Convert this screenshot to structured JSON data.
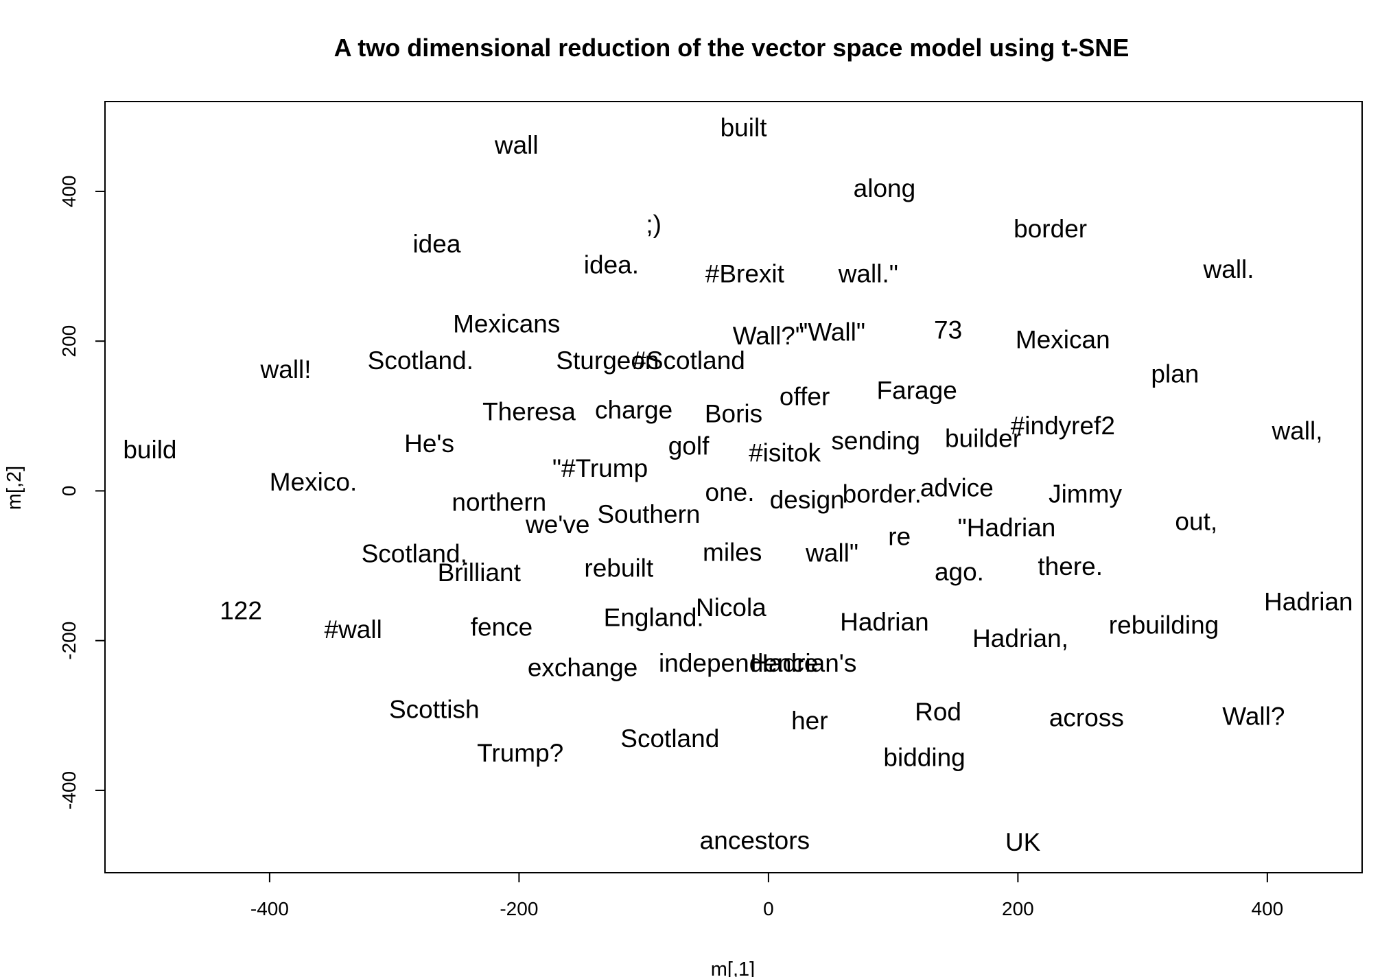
{
  "chart_data": {
    "type": "scatter",
    "title": "A two dimensional reduction of the vector space model using t-SNE",
    "xlabel": "m[,1]",
    "ylabel": "m[,2]",
    "xlim": [
      -532,
      476
    ],
    "ylim": [
      -510,
      520
    ],
    "xticks": [
      -400,
      -200,
      0,
      200,
      400
    ],
    "yticks": [
      -400,
      -200,
      0,
      200,
      400
    ],
    "grid": false,
    "legend": "none",
    "points": [
      {
        "label": "built",
        "x": -20,
        "y": 485
      },
      {
        "label": "wall",
        "x": -202,
        "y": 462
      },
      {
        "label": "along",
        "x": 93,
        "y": 404
      },
      {
        "label": ";)",
        "x": -92,
        "y": 356
      },
      {
        "label": "border",
        "x": 226,
        "y": 350
      },
      {
        "label": "idea",
        "x": -266,
        "y": 330
      },
      {
        "label": "idea.",
        "x": -126,
        "y": 302
      },
      {
        "label": "#Brexit",
        "x": -19,
        "y": 290
      },
      {
        "label": "wall.\"",
        "x": 80,
        "y": 290
      },
      {
        "label": "wall.",
        "x": 369,
        "y": 296
      },
      {
        "label": "Mexicans",
        "x": -210,
        "y": 223
      },
      {
        "label": "Wall?\"",
        "x": 0,
        "y": 207
      },
      {
        "label": "\"Wall\"",
        "x": 51,
        "y": 212
      },
      {
        "label": "73",
        "x": 144,
        "y": 215
      },
      {
        "label": "Mexican",
        "x": 236,
        "y": 202
      },
      {
        "label": "wall!",
        "x": -387,
        "y": 162
      },
      {
        "label": "Scotland.",
        "x": -279,
        "y": 174
      },
      {
        "label": "Sturgeon",
        "x": -129,
        "y": 174
      },
      {
        "label": "#Scotland",
        "x": -64,
        "y": 174
      },
      {
        "label": "plan",
        "x": 326,
        "y": 156
      },
      {
        "label": "offer",
        "x": 29,
        "y": 126
      },
      {
        "label": "Farage",
        "x": 119,
        "y": 134
      },
      {
        "label": "Theresa",
        "x": -192,
        "y": 106
      },
      {
        "label": "charge",
        "x": -108,
        "y": 108
      },
      {
        "label": "Boris",
        "x": -28,
        "y": 103
      },
      {
        "label": "#indyref2",
        "x": 236,
        "y": 87
      },
      {
        "label": "build",
        "x": -496,
        "y": 55
      },
      {
        "label": "He's",
        "x": -272,
        "y": 63
      },
      {
        "label": "golf",
        "x": -64,
        "y": 60
      },
      {
        "label": "#isitok",
        "x": 13,
        "y": 51
      },
      {
        "label": "sending",
        "x": 86,
        "y": 67
      },
      {
        "label": "builder",
        "x": 172,
        "y": 70
      },
      {
        "label": "wall,",
        "x": 424,
        "y": 80
      },
      {
        "label": "\"#Trump",
        "x": -135,
        "y": 30
      },
      {
        "label": "Mexico.",
        "x": -365,
        "y": 12
      },
      {
        "label": "one.",
        "x": -31,
        "y": -2
      },
      {
        "label": "design",
        "x": 31,
        "y": -12
      },
      {
        "label": "border.",
        "x": 91,
        "y": -4
      },
      {
        "label": "advice",
        "x": 151,
        "y": 4
      },
      {
        "label": "Jimmy",
        "x": 254,
        "y": -4
      },
      {
        "label": "northern",
        "x": -216,
        "y": -15
      },
      {
        "label": "Southern",
        "x": -96,
        "y": -31
      },
      {
        "label": "we've",
        "x": -169,
        "y": -45
      },
      {
        "label": "out,",
        "x": 343,
        "y": -41
      },
      {
        "label": "\"Hadrian",
        "x": 191,
        "y": -49
      },
      {
        "label": "re",
        "x": 105,
        "y": -61
      },
      {
        "label": "Scotland,",
        "x": -284,
        "y": -84
      },
      {
        "label": "miles",
        "x": -29,
        "y": -82
      },
      {
        "label": "wall\"",
        "x": 51,
        "y": -83
      },
      {
        "label": "Brilliant",
        "x": -232,
        "y": -109
      },
      {
        "label": "rebuilt",
        "x": -120,
        "y": -103
      },
      {
        "label": "ago.",
        "x": 153,
        "y": -108
      },
      {
        "label": "there.",
        "x": 242,
        "y": -101
      },
      {
        "label": "122",
        "x": -423,
        "y": -160
      },
      {
        "label": "Nicola",
        "x": -30,
        "y": -156
      },
      {
        "label": "England.",
        "x": -92,
        "y": -169
      },
      {
        "label": "Hadrian",
        "x": 93,
        "y": -175
      },
      {
        "label": "Hadrian",
        "x": 433,
        "y": -148
      },
      {
        "label": "#wall",
        "x": -333,
        "y": -185
      },
      {
        "label": "fence",
        "x": -214,
        "y": -182
      },
      {
        "label": "rebuilding",
        "x": 317,
        "y": -179
      },
      {
        "label": "Hadrian,",
        "x": 202,
        "y": -197
      },
      {
        "label": "exchange",
        "x": -149,
        "y": -236
      },
      {
        "label": "independence",
        "x": -24,
        "y": -230
      },
      {
        "label": "Hadrian's",
        "x": 28,
        "y": -230
      },
      {
        "label": "Scottish",
        "x": -268,
        "y": -292
      },
      {
        "label": "Rod",
        "x": 136,
        "y": -295
      },
      {
        "label": "Wall?",
        "x": 389,
        "y": -301
      },
      {
        "label": "across",
        "x": 255,
        "y": -303
      },
      {
        "label": "her",
        "x": 33,
        "y": -307
      },
      {
        "label": "Scotland",
        "x": -79,
        "y": -331
      },
      {
        "label": "Trump?",
        "x": -199,
        "y": -350
      },
      {
        "label": "bidding",
        "x": 125,
        "y": -356
      },
      {
        "label": "ancestors",
        "x": -11,
        "y": -467
      },
      {
        "label": "UK",
        "x": 204,
        "y": -469
      }
    ]
  }
}
